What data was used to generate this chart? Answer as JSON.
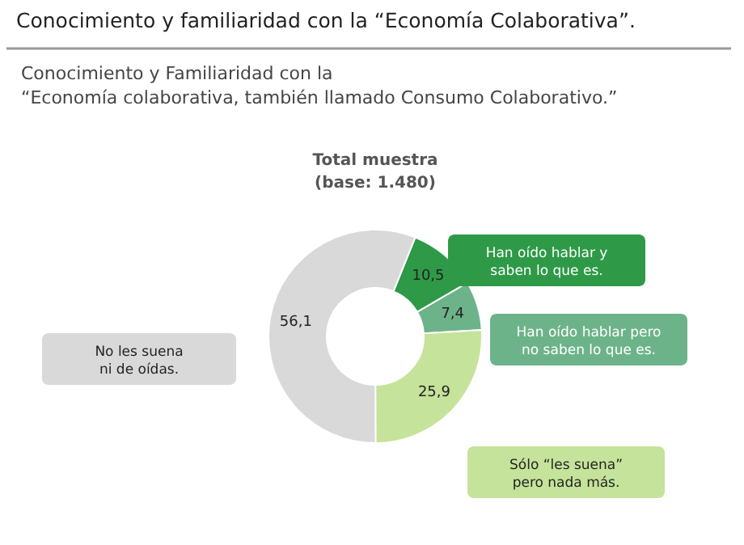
{
  "chart_data": {
    "type": "donut",
    "title": "Conocimiento y familiaridad con la “Economía Colaborativa”.",
    "subtitle": "Conocimiento y Familiaridad con la\n“Economía colaborativa, también llamado Consumo Colaborativo.”",
    "annotations": [
      "Total muestra\n(base: 1.480)"
    ],
    "categories": [
      "Han oído hablar y saben lo que es.",
      "Han oído hablar pero no saben lo que es.",
      "Sólo “les suena” pero nada más.",
      "No les suena ni de oídas."
    ],
    "values": [
      10.5,
      7.4,
      25.9,
      56.1
    ],
    "colors": [
      "#2e9a48",
      "#6db38a",
      "#c5e39a",
      "#d9d9d9"
    ],
    "value_labels": [
      "10,5",
      "7,4",
      "25,9",
      "56,1"
    ]
  }
}
